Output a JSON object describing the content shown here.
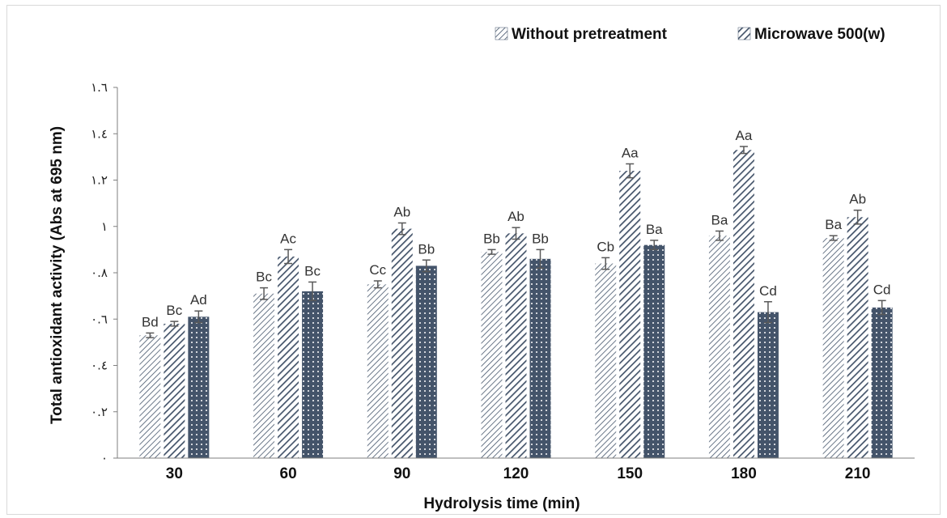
{
  "chart_data": {
    "type": "bar",
    "title": "",
    "xlabel": "Hydrolysis time (min)",
    "ylabel": "Total antioxidant activity (Abs at 695 nm)",
    "ylim": [
      0,
      1.6
    ],
    "yticks": [
      0,
      0.2,
      0.4,
      0.6,
      0.8,
      1.0,
      1.2,
      1.4,
      1.6
    ],
    "ytick_labels": [
      "٠",
      "٠.٢",
      "٠.٤",
      "٠.٦",
      "٠.٨",
      "١",
      "١.٢",
      "١.٤",
      "١.٦"
    ],
    "categories": [
      "30",
      "60",
      "90",
      "120",
      "150",
      "180",
      "210"
    ],
    "legend_position": "top-right",
    "grid": false,
    "series": [
      {
        "name": "Without pretreatment",
        "pattern": "fine-diagonal",
        "color": "#44546a",
        "values": [
          0.53,
          0.71,
          0.75,
          0.89,
          0.84,
          0.96,
          0.95
        ],
        "errors": [
          0.01,
          0.025,
          0.015,
          0.01,
          0.025,
          0.02,
          0.01
        ],
        "labels": [
          "Bd",
          "Bc",
          "Cc",
          "Bb",
          "Cb",
          "Ba",
          "Ba"
        ]
      },
      {
        "name": "Microwave 500(w)",
        "pattern": "wide-diagonal",
        "color": "#44546a",
        "values": [
          0.58,
          0.87,
          0.99,
          0.97,
          1.24,
          1.33,
          1.04
        ],
        "errors": [
          0.01,
          0.03,
          0.025,
          0.025,
          0.03,
          0.015,
          0.03
        ],
        "labels": [
          "Bc",
          "Ac",
          "Ab",
          "Ab",
          "Aa",
          "Aa",
          "Ab"
        ]
      },
      {
        "name": "",
        "pattern": "dots",
        "color": "#44546a",
        "values": [
          0.61,
          0.72,
          0.83,
          0.86,
          0.92,
          0.63,
          0.65
        ],
        "errors": [
          0.025,
          0.04,
          0.025,
          0.04,
          0.02,
          0.045,
          0.03
        ],
        "labels": [
          "Ad",
          "Bc",
          "Bb",
          "Bb",
          "Ba",
          "Cd",
          "Cd"
        ]
      }
    ]
  }
}
